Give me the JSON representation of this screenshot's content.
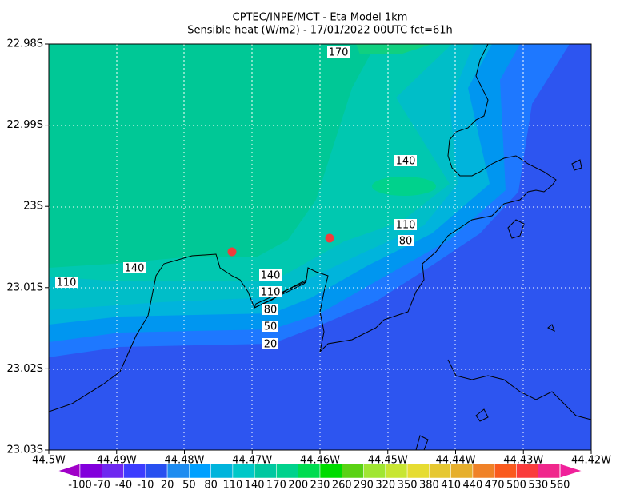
{
  "title": {
    "line1": "CPTEC/INPE/MCT -  Eta Model 1km",
    "line2": "Sensible heat (W/m2) - 17/01/2022 00UTC fct=61h"
  },
  "y_axis": [
    "22.98S",
    "22.99S",
    "23S",
    "23.01S",
    "23.02S",
    "23.03S"
  ],
  "x_axis": [
    "44.5W",
    "44.49W",
    "44.48W",
    "44.47W",
    "44.46W",
    "44.45W",
    "44.44W",
    "44.43W",
    "44.42W"
  ],
  "contour_labels": [
    "170",
    "140",
    "110",
    "80",
    "140",
    "110",
    "140",
    "110",
    "80",
    "50",
    "20"
  ],
  "colorbar": {
    "labels": [
      "-100",
      "-70",
      "-40",
      "-10",
      "20",
      "50",
      "80",
      "110",
      "140",
      "170",
      "200",
      "230",
      "260",
      "290",
      "320",
      "350",
      "380",
      "410",
      "440",
      "470",
      "500",
      "530",
      "560"
    ]
  }
}
